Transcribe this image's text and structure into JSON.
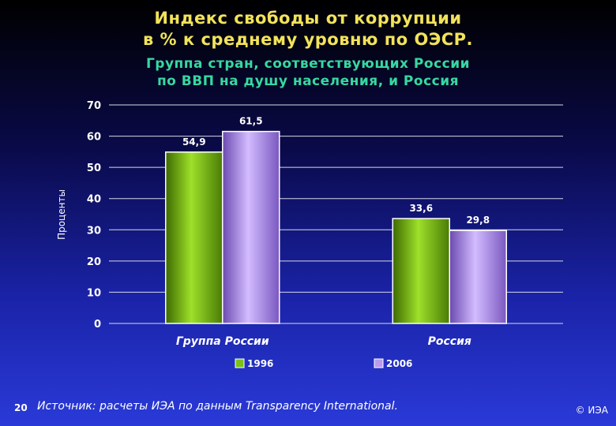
{
  "header": {
    "title_line1": "Индекс свободы от коррупции",
    "title_line2": "в % к среднему уровню по ОЭСР.",
    "subtitle_line1": "Группа стран, соответствующих России",
    "subtitle_line2": "по ВВП на душу населения, и Россия"
  },
  "chart_data": {
    "type": "bar",
    "categories": [
      "Группа России",
      "Россия"
    ],
    "series": [
      {
        "name": "1996",
        "values": [
          54.9,
          33.6
        ],
        "labels": [
          "54,9",
          "33,6"
        ],
        "color": "#7bc01a"
      },
      {
        "name": "2006",
        "values": [
          61.5,
          29.8
        ],
        "labels": [
          "61,5",
          "29,8"
        ],
        "color": "#b99bf0"
      }
    ],
    "ylabel": "Проценты",
    "ylim": [
      0,
      70
    ],
    "yticks": [
      "0",
      "10",
      "20",
      "30",
      "40",
      "50",
      "60",
      "70"
    ],
    "grid": true,
    "legend_position": "bottom"
  },
  "footer": {
    "page_number": "20",
    "source": "Источник:  расчеты ИЭА по данным Transparency International.",
    "copyright": "© ИЭА"
  }
}
